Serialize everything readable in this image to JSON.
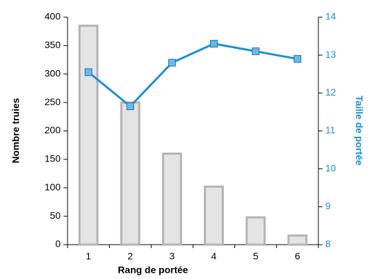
{
  "chart_data": {
    "type": "combo",
    "x_label": "Rang de portée",
    "y_label": "Nombre truies",
    "y2_label": "Taille de portée",
    "categories": [
      "1",
      "2",
      "3",
      "4",
      "5",
      "6"
    ],
    "series": [
      {
        "type": "bar",
        "color": "#e4e4e4",
        "values": [
          385,
          250,
          160,
          102,
          48,
          16
        ]
      },
      {
        "type": "line",
        "axis": "y2",
        "color": "#1a8fd1",
        "values": [
          12.55,
          11.65,
          12.8,
          13.3,
          13.1,
          12.9
        ]
      }
    ],
    "ylim": [
      0,
      400
    ],
    "yticks": [
      0,
      50,
      100,
      150,
      200,
      250,
      300,
      350,
      400
    ],
    "y2lim": [
      8,
      14
    ],
    "y2ticks": [
      8,
      9,
      10,
      11,
      12,
      13,
      14
    ],
    "y2_color": "#1a8fd1"
  }
}
